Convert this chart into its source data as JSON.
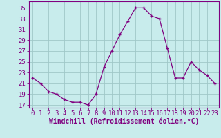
{
  "x": [
    0,
    1,
    2,
    3,
    4,
    5,
    6,
    7,
    8,
    9,
    10,
    11,
    12,
    13,
    14,
    15,
    16,
    17,
    18,
    19,
    20,
    21,
    22,
    23
  ],
  "y": [
    22,
    21,
    19.5,
    19,
    18,
    17.5,
    17.5,
    17,
    19,
    24,
    27,
    30,
    32.5,
    35,
    35,
    33.5,
    33,
    27.5,
    22,
    22,
    25,
    23.5,
    22.5,
    21
  ],
  "line_color": "#800080",
  "marker": "+",
  "bg_color": "#c8ecec",
  "grid_color": "#a0c8c8",
  "xlabel": "Windchill (Refroidissement éolien,°C)",
  "ylabel_ticks": [
    17,
    19,
    21,
    23,
    25,
    27,
    29,
    31,
    33,
    35
  ],
  "xlim": [
    -0.5,
    23.5
  ],
  "ylim": [
    16.5,
    36.2
  ],
  "xlabel_fontsize": 7,
  "tick_fontsize": 6.5,
  "axis_color": "#800080",
  "spine_color": "#800080"
}
